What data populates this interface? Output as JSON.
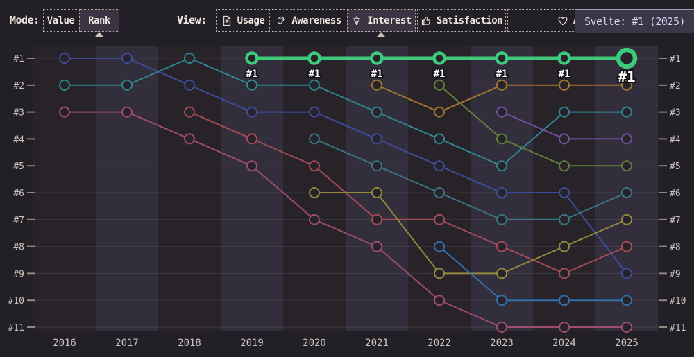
{
  "mode": {
    "label": "Mode:",
    "options": [
      {
        "label": "Value",
        "active": false
      },
      {
        "label": "Rank",
        "active": true
      }
    ]
  },
  "view": {
    "label": "View:",
    "tabs": [
      {
        "label": "Usage",
        "icon": "document-icon",
        "active": false
      },
      {
        "label": "Awareness",
        "icon": "ear-icon",
        "active": false
      },
      {
        "label": "Interest",
        "icon": "lightbulb-icon",
        "active": true
      },
      {
        "label": "Satisfaction",
        "icon": "thumbs-up-icon",
        "active": false
      },
      {
        "label": "Appreciation",
        "icon": "heart-icon",
        "active": false
      }
    ]
  },
  "tooltip": {
    "text": "Svelte: #1 (2025)"
  },
  "chart_data": {
    "type": "line",
    "subtype": "bump-rank",
    "x": [
      2016,
      2017,
      2018,
      2019,
      2020,
      2021,
      2022,
      2023,
      2024,
      2025
    ],
    "rank_labels": [
      "#1",
      "#2",
      "#3",
      "#4",
      "#5",
      "#6",
      "#7",
      "#8",
      "#9",
      "#10",
      "#11"
    ],
    "ylim": [
      1,
      11
    ],
    "grid": true,
    "highlight_point_label": "#1",
    "colors": {
      "background": "#221f26",
      "band_dark": "#272329",
      "band_light": "#322e3c",
      "highlight_green": "#3dcb7b"
    },
    "series": [
      {
        "id": "blue",
        "color": "#3e4d9b",
        "highlight": false,
        "points": [
          [
            2016,
            1
          ],
          [
            2017,
            1
          ],
          [
            2018,
            2
          ],
          [
            2019,
            3
          ],
          [
            2020,
            3
          ],
          [
            2021,
            4
          ],
          [
            2022,
            5
          ],
          [
            2023,
            6
          ],
          [
            2024,
            6
          ],
          [
            2025,
            9
          ]
        ]
      },
      {
        "id": "teal",
        "color": "#2f8691",
        "highlight": false,
        "points": [
          [
            2016,
            2
          ],
          [
            2017,
            2
          ],
          [
            2018,
            1
          ],
          [
            2019,
            2
          ],
          [
            2020,
            2
          ],
          [
            2021,
            3
          ],
          [
            2022,
            4
          ],
          [
            2023,
            5
          ],
          [
            2024,
            3
          ],
          [
            2025,
            3
          ]
        ]
      },
      {
        "id": "pink",
        "color": "#a04b70",
        "highlight": false,
        "points": [
          [
            2016,
            3
          ],
          [
            2017,
            3
          ],
          [
            2018,
            4
          ],
          [
            2019,
            5
          ],
          [
            2020,
            7
          ],
          [
            2021,
            8
          ],
          [
            2022,
            10
          ],
          [
            2023,
            11
          ],
          [
            2024,
            11
          ],
          [
            2025,
            11
          ]
        ]
      },
      {
        "id": "crimson",
        "color": "#a64b55",
        "highlight": false,
        "points": [
          [
            2018,
            3
          ],
          [
            2019,
            4
          ],
          [
            2020,
            5
          ],
          [
            2021,
            7
          ],
          [
            2022,
            7
          ],
          [
            2023,
            8
          ],
          [
            2024,
            9
          ],
          [
            2025,
            8
          ]
        ]
      },
      {
        "id": "olive",
        "color": "#93893f",
        "highlight": false,
        "points": [
          [
            2020,
            6
          ],
          [
            2021,
            6
          ],
          [
            2022,
            9
          ],
          [
            2023,
            9
          ],
          [
            2024,
            8
          ],
          [
            2025,
            7
          ]
        ]
      },
      {
        "id": "teal-dark",
        "color": "#3d7484",
        "highlight": false,
        "points": [
          [
            2020,
            4
          ],
          [
            2021,
            5
          ],
          [
            2022,
            6
          ],
          [
            2023,
            7
          ],
          [
            2024,
            7
          ],
          [
            2025,
            6
          ]
        ]
      },
      {
        "id": "amber",
        "color": "#a0762e",
        "highlight": false,
        "points": [
          [
            2021,
            2
          ],
          [
            2022,
            3
          ],
          [
            2023,
            2
          ],
          [
            2024,
            2
          ],
          [
            2025,
            2
          ]
        ]
      },
      {
        "id": "dark-green",
        "color": "#61803d",
        "highlight": false,
        "points": [
          [
            2022,
            2
          ],
          [
            2023,
            4
          ],
          [
            2024,
            5
          ],
          [
            2025,
            5
          ]
        ]
      },
      {
        "id": "bright-blue",
        "color": "#336fa8",
        "highlight": false,
        "points": [
          [
            2022,
            8
          ],
          [
            2023,
            10
          ],
          [
            2024,
            10
          ],
          [
            2025,
            10
          ]
        ]
      },
      {
        "id": "purple",
        "color": "#6f549b",
        "highlight": false,
        "points": [
          [
            2023,
            3
          ],
          [
            2024,
            4
          ],
          [
            2025,
            4
          ]
        ]
      },
      {
        "id": "Svelte",
        "color": "#3dcb7b",
        "highlight": true,
        "hovered_year": 2025,
        "points": [
          [
            2019,
            1
          ],
          [
            2020,
            1
          ],
          [
            2021,
            1
          ],
          [
            2022,
            1
          ],
          [
            2023,
            1
          ],
          [
            2024,
            1
          ],
          [
            2025,
            1
          ]
        ]
      }
    ]
  }
}
